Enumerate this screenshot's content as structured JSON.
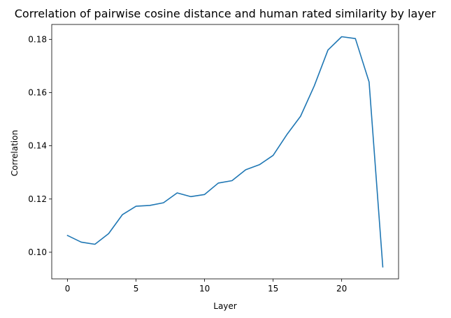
{
  "chart_data": {
    "type": "line",
    "title": "Correlation of pairwise cosine distance and human rated similarity by layer",
    "xlabel": "Layer",
    "ylabel": "Correlation",
    "xlim": [
      -1.15,
      24.15
    ],
    "ylim": [
      0.09,
      0.1856
    ],
    "xticks": [
      0,
      5,
      10,
      15,
      20
    ],
    "xtick_labels": [
      "0",
      "5",
      "10",
      "15",
      "20"
    ],
    "yticks": [
      0.1,
      0.12,
      0.14,
      0.16,
      0.18
    ],
    "ytick_labels": [
      "0.10",
      "0.12",
      "0.14",
      "0.16",
      "0.18"
    ],
    "grid": false,
    "series": [
      {
        "color": "#1f77b4",
        "x": [
          0,
          1,
          2,
          3,
          4,
          5,
          6,
          7,
          8,
          9,
          10,
          11,
          12,
          13,
          14,
          15,
          16,
          17,
          18,
          19,
          20,
          21,
          22,
          23
        ],
        "y": [
          0.1063,
          0.1038,
          0.103,
          0.107,
          0.1141,
          0.1173,
          0.1176,
          0.1186,
          0.1223,
          0.1209,
          0.1217,
          0.126,
          0.1269,
          0.131,
          0.1329,
          0.1364,
          0.1442,
          0.1511,
          0.1625,
          0.176,
          0.181,
          0.1803,
          0.164,
          0.0945
        ]
      }
    ]
  }
}
